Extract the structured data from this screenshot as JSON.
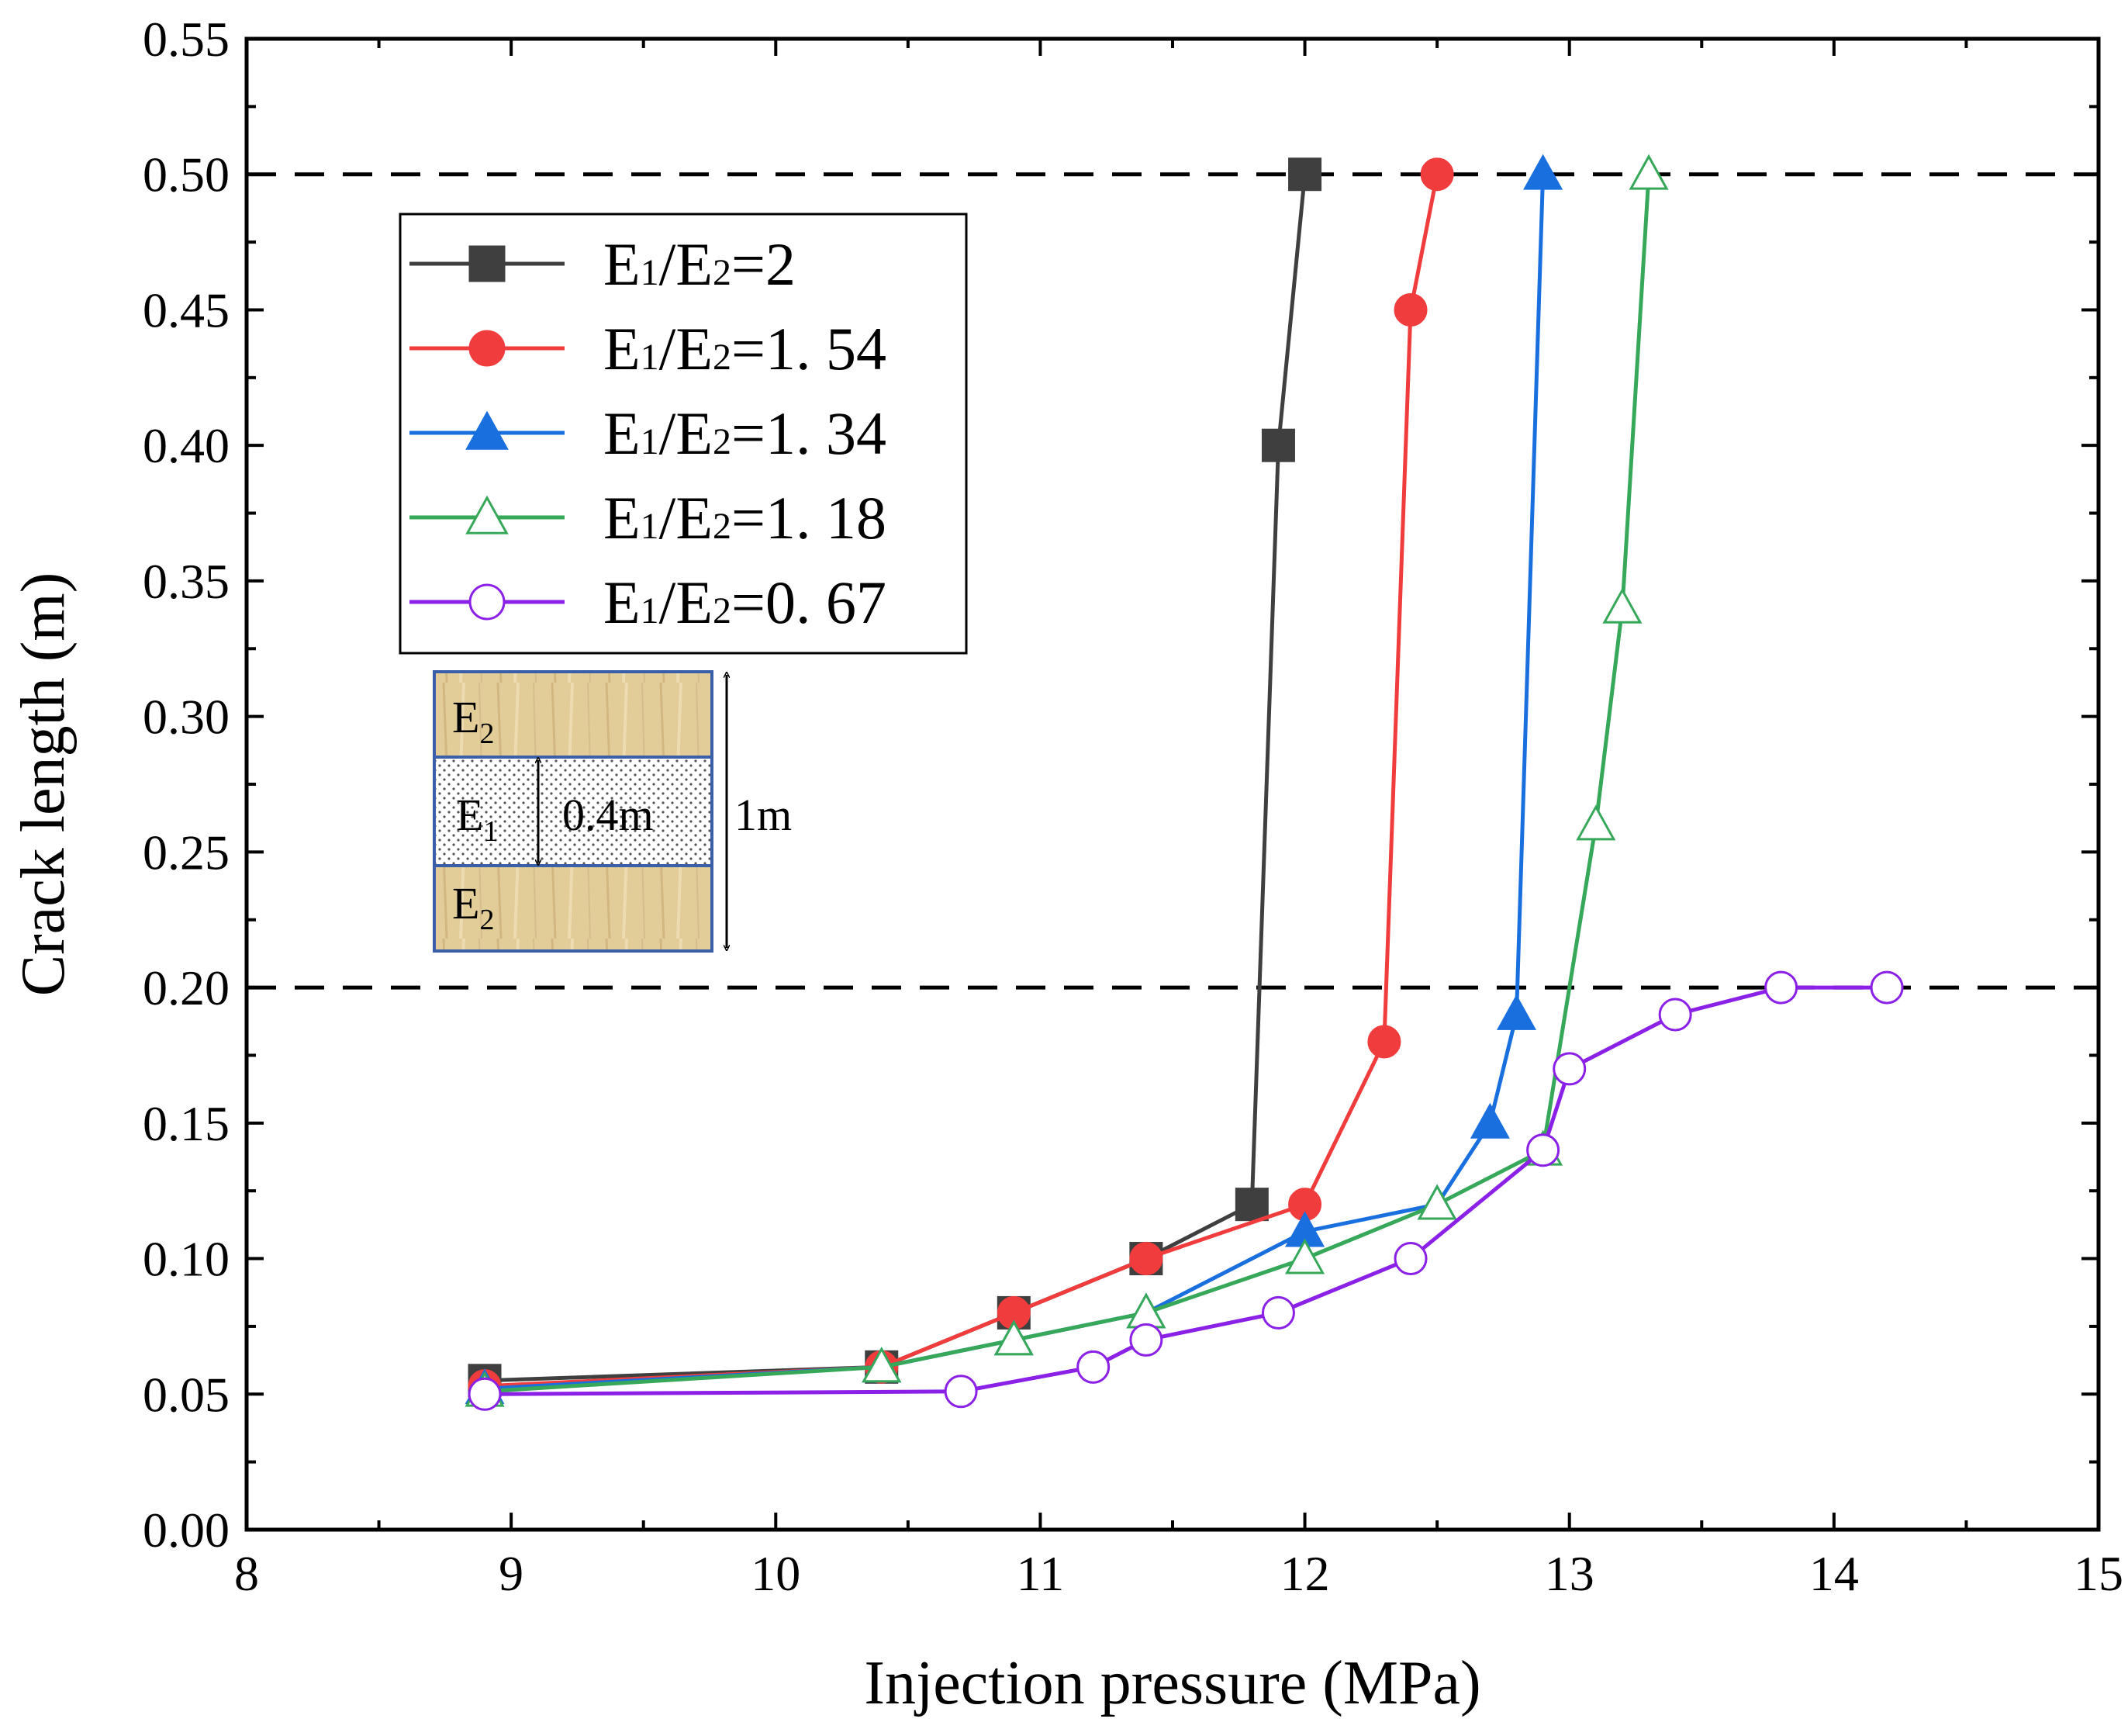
{
  "chart_data": {
    "type": "line",
    "xlabel": "Injection pressure (MPa)",
    "ylabel": "Crack length (m)",
    "xlim": [
      8,
      15
    ],
    "ylim": [
      0,
      0.55
    ],
    "xticks": [
      "8",
      "9",
      "10",
      "11",
      "12",
      "13",
      "14",
      "15"
    ],
    "yticks": [
      "0.00",
      "0.05",
      "0.10",
      "0.15",
      "0.20",
      "0.25",
      "0.30",
      "0.35",
      "0.40",
      "0.45",
      "0.50",
      "0.55"
    ],
    "grid": false,
    "legend_position": "top-left",
    "reference_lines": [
      {
        "y": 0.5,
        "style": "dashed"
      },
      {
        "y": 0.2,
        "style": "dashed"
      }
    ],
    "series": [
      {
        "name": "E1/E2=2",
        "label_main": "E",
        "label_sub1": "1",
        "label_mid": "/E",
        "label_sub2": "2",
        "label_value": "=2",
        "color": "#3f3f3f",
        "marker": "square",
        "filled": true,
        "points": [
          [
            8.9,
            0.055
          ],
          [
            10.4,
            0.06
          ],
          [
            10.9,
            0.08
          ],
          [
            11.4,
            0.1
          ],
          [
            11.8,
            0.12
          ],
          [
            11.9,
            0.4
          ],
          [
            12.0,
            0.5
          ]
        ]
      },
      {
        "name": "E1/E2=1. 54",
        "label_main": "E",
        "label_sub1": "1",
        "label_mid": "/E",
        "label_sub2": "2",
        "label_value": "=1. 54",
        "color": "#f03c3c",
        "marker": "circle",
        "filled": true,
        "points": [
          [
            8.9,
            0.053
          ],
          [
            10.4,
            0.06
          ],
          [
            10.9,
            0.08
          ],
          [
            11.4,
            0.1
          ],
          [
            12.0,
            0.12
          ],
          [
            12.3,
            0.18
          ],
          [
            12.4,
            0.45
          ],
          [
            12.5,
            0.5
          ]
        ]
      },
      {
        "name": "E1/E2=1. 34",
        "label_main": "E",
        "label_sub1": "1",
        "label_mid": "/E",
        "label_sub2": "2",
        "label_value": "=1. 34",
        "color": "#1a6fdf",
        "marker": "triangle",
        "filled": true,
        "points": [
          [
            8.9,
            0.052
          ],
          [
            10.4,
            0.06
          ],
          [
            10.9,
            0.07
          ],
          [
            11.4,
            0.08
          ],
          [
            12.0,
            0.11
          ],
          [
            12.5,
            0.12
          ],
          [
            12.7,
            0.15
          ],
          [
            12.8,
            0.19
          ],
          [
            12.9,
            0.5
          ]
        ]
      },
      {
        "name": "E1/E2=1. 18",
        "label_main": "E",
        "label_sub1": "1",
        "label_mid": "/E",
        "label_sub2": "2",
        "label_value": "=1. 18",
        "color": "#37a85a",
        "marker": "triangle",
        "filled": false,
        "points": [
          [
            8.9,
            0.051
          ],
          [
            10.4,
            0.06
          ],
          [
            10.9,
            0.07
          ],
          [
            11.4,
            0.08
          ],
          [
            12.0,
            0.1
          ],
          [
            12.5,
            0.12
          ],
          [
            12.9,
            0.14
          ],
          [
            13.1,
            0.26
          ],
          [
            13.2,
            0.34
          ],
          [
            13.3,
            0.5
          ]
        ]
      },
      {
        "name": "E1/E2=0. 67",
        "label_main": "E",
        "label_sub1": "1",
        "label_mid": "/E",
        "label_sub2": "2",
        "label_value": "=0. 67",
        "color": "#8b20e6",
        "marker": "circle",
        "filled": false,
        "points": [
          [
            8.9,
            0.05
          ],
          [
            10.7,
            0.051
          ],
          [
            11.2,
            0.06
          ],
          [
            11.4,
            0.07
          ],
          [
            11.9,
            0.08
          ],
          [
            12.4,
            0.1
          ],
          [
            12.9,
            0.14
          ],
          [
            13.0,
            0.17
          ],
          [
            13.4,
            0.19
          ],
          [
            13.8,
            0.2
          ],
          [
            14.2,
            0.2
          ]
        ]
      }
    ]
  },
  "inset": {
    "layer_top": {
      "main": "E",
      "sub": "2"
    },
    "layer_mid": {
      "main": "E",
      "sub": "1"
    },
    "layer_bottom": {
      "main": "E",
      "sub": "2"
    },
    "inner_dim": "0.4m",
    "outer_dim": "1m",
    "colors": {
      "wood": "#e2cc98",
      "border": "#3b5ea8",
      "dotted_fill": "#ffffff",
      "dots": "#555555"
    }
  }
}
